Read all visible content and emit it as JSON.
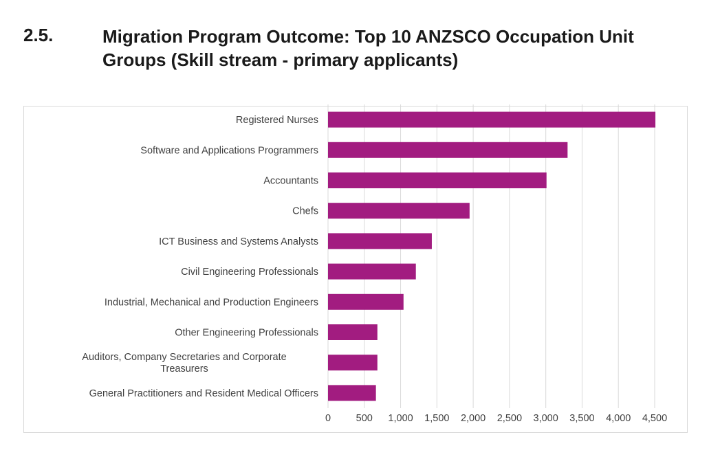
{
  "heading": {
    "number": "2.5.",
    "title": "Migration Program Outcome: Top 10 ANZSCO Occupation Unit Groups (Skill stream - primary applicants)"
  },
  "chart_data": {
    "type": "bar",
    "orientation": "horizontal",
    "categories": [
      "Registered Nurses",
      "Software and Applications Programmers",
      "Accountants",
      "Chefs",
      "ICT Business and Systems Analysts",
      "Civil Engineering Professionals",
      "Industrial, Mechanical and Production Engineers",
      "Other Engineering Professionals",
      "Auditors, Company Secretaries and Corporate Treasurers",
      "General Practitioners and Resident Medical Officers"
    ],
    "category_lines": [
      [
        "Registered Nurses"
      ],
      [
        "Software and Applications Programmers"
      ],
      [
        "Accountants"
      ],
      [
        "Chefs"
      ],
      [
        "ICT Business and Systems Analysts"
      ],
      [
        "Civil Engineering Professionals"
      ],
      [
        "Industrial, Mechanical and Production Engineers"
      ],
      [
        "Other Engineering Professionals"
      ],
      [
        "Auditors, Company Secretaries and Corporate",
        "Treasurers"
      ],
      [
        "General Practitioners and Resident Medical Officers"
      ]
    ],
    "values": [
      4510,
      3300,
      3010,
      1950,
      1430,
      1210,
      1040,
      680,
      680,
      660
    ],
    "xlim": [
      0,
      4500
    ],
    "xticks": [
      0,
      500,
      1000,
      1500,
      2000,
      2500,
      3000,
      3500,
      4000,
      4500
    ],
    "xtick_labels": [
      "0",
      "500",
      "1,000",
      "1,500",
      "2,000",
      "2,500",
      "3,000",
      "3,500",
      "4,000",
      "4,500"
    ],
    "title": "",
    "xlabel": "",
    "ylabel": "",
    "grid": "vertical",
    "legend": "none",
    "colors": {
      "bar": "#a21c80",
      "grid": "#d9d9d9",
      "text": "#404040"
    }
  }
}
